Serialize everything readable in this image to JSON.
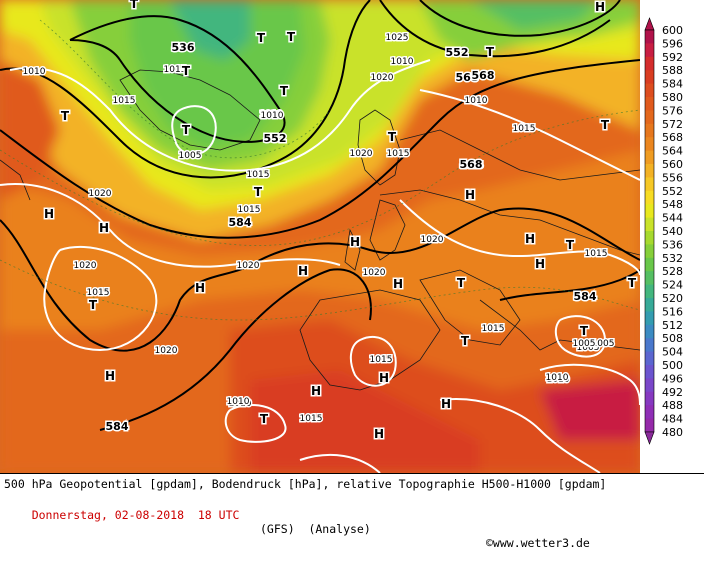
{
  "footer": {
    "description": "500 hPa Geopotential [gpdam], Bodendruck [hPa], relative Topographie H500-H1000 [gpdam]",
    "date": "Donnerstag, 02-08-2018  18 UTC",
    "model": "(GFS)  (Analyse)",
    "credit": "©www.wetter3.de"
  },
  "legend": {
    "levels": [
      600,
      596,
      592,
      588,
      584,
      580,
      576,
      572,
      568,
      564,
      560,
      556,
      552,
      548,
      544,
      540,
      536,
      532,
      528,
      524,
      520,
      516,
      512,
      508,
      504,
      500,
      496,
      492,
      488,
      484,
      480
    ],
    "colors": [
      "#b0124a",
      "#c81e43",
      "#d42d2d",
      "#d93d21",
      "#dd4d1f",
      "#e05a1d",
      "#e3681c",
      "#e6771d",
      "#eb861f",
      "#ef9c22",
      "#f3b225",
      "#f6c826",
      "#f7dc24",
      "#e8e81e",
      "#c9e22a",
      "#a6d92e",
      "#86cf3a",
      "#69c74a",
      "#55bf63",
      "#43b67e",
      "#37aa98",
      "#339cb0",
      "#3b8bc2",
      "#4a78cc",
      "#5b66d0",
      "#6b55cf",
      "#7a47c9",
      "#8639c0",
      "#8f2fb6",
      "#952aa9",
      "#8a2a9a"
    ]
  },
  "map": {
    "pressure_labels": [
      "1005",
      "1005",
      "1010",
      "1010",
      "1010",
      "1010",
      "1010",
      "1010",
      "1015",
      "1015",
      "1015",
      "1015",
      "1015",
      "1015",
      "1015",
      "1015",
      "1015",
      "1015",
      "1015",
      "1015",
      "1020",
      "1020",
      "1020",
      "1020",
      "1020",
      "1020",
      "1020",
      "1020",
      "1025",
      "1005",
      "1005",
      "1010",
      "1010",
      "1010"
    ],
    "geopotential_labels": [
      "536",
      "552",
      "552",
      "568",
      "568",
      "584",
      "584",
      "584",
      "568"
    ],
    "centers": [
      "T",
      "T",
      "T",
      "T",
      "T",
      "T",
      "T",
      "T",
      "T",
      "T",
      "T",
      "T",
      "T",
      "T",
      "T",
      "T",
      "T",
      "T",
      "H",
      "H",
      "H",
      "H",
      "H",
      "H",
      "H",
      "H",
      "H",
      "H",
      "H",
      "H",
      "H",
      "H",
      "H"
    ]
  }
}
